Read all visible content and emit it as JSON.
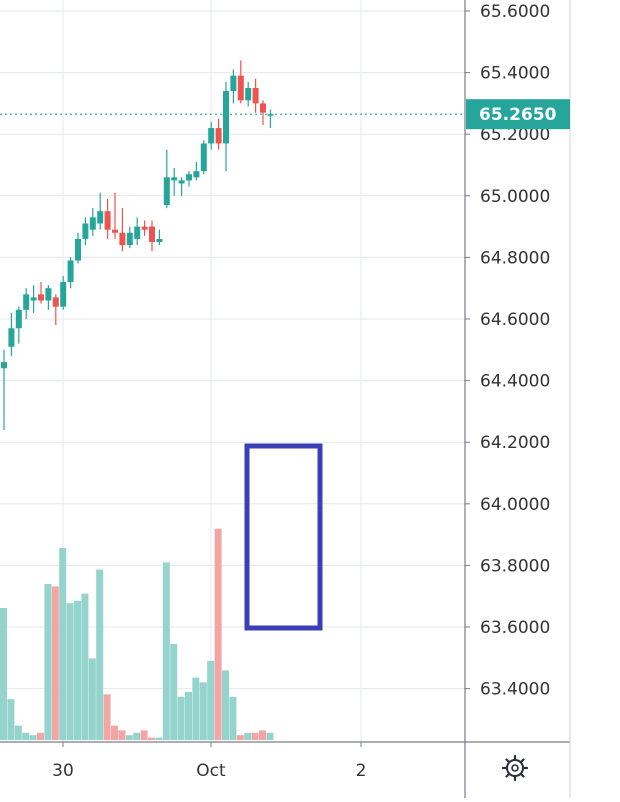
{
  "chart_data": {
    "type": "candlestick",
    "price_axis": {
      "ticks": [
        "65.6000",
        "65.4000",
        "65.2000",
        "65.0000",
        "64.8000",
        "64.6000",
        "64.4000",
        "64.2000",
        "64.0000",
        "63.8000",
        "63.6000",
        "63.4000"
      ],
      "range": [
        63.2,
        65.65
      ],
      "current_price_label": "65.2650",
      "current_price": 65.265
    },
    "time_axis": {
      "ticks": [
        "30",
        "Oct",
        "2"
      ]
    },
    "candles": [
      {
        "o": 64.44,
        "h": 64.5,
        "l": 64.24,
        "c": 64.46
      },
      {
        "o": 64.51,
        "h": 64.62,
        "l": 64.48,
        "c": 64.57
      },
      {
        "o": 64.57,
        "h": 64.64,
        "l": 64.52,
        "c": 64.63
      },
      {
        "o": 64.63,
        "h": 64.7,
        "l": 64.6,
        "c": 64.68
      },
      {
        "o": 64.66,
        "h": 64.71,
        "l": 64.62,
        "c": 64.67
      },
      {
        "o": 64.68,
        "h": 64.72,
        "l": 64.65,
        "c": 64.66
      },
      {
        "o": 64.66,
        "h": 64.71,
        "l": 64.63,
        "c": 64.7
      },
      {
        "o": 64.67,
        "h": 64.68,
        "l": 64.58,
        "c": 64.64
      },
      {
        "o": 64.64,
        "h": 64.74,
        "l": 64.63,
        "c": 64.72
      },
      {
        "o": 64.72,
        "h": 64.8,
        "l": 64.7,
        "c": 64.79
      },
      {
        "o": 64.79,
        "h": 64.88,
        "l": 64.78,
        "c": 64.86
      },
      {
        "o": 64.86,
        "h": 64.93,
        "l": 64.84,
        "c": 64.91
      },
      {
        "o": 64.89,
        "h": 64.96,
        "l": 64.87,
        "c": 64.93
      },
      {
        "o": 64.91,
        "h": 65.01,
        "l": 64.89,
        "c": 64.95
      },
      {
        "o": 64.95,
        "h": 64.99,
        "l": 64.86,
        "c": 64.89
      },
      {
        "o": 64.89,
        "h": 65.01,
        "l": 64.86,
        "c": 64.88
      },
      {
        "o": 64.88,
        "h": 64.96,
        "l": 64.82,
        "c": 64.84
      },
      {
        "o": 64.84,
        "h": 64.9,
        "l": 64.83,
        "c": 64.88
      },
      {
        "o": 64.86,
        "h": 64.93,
        "l": 64.84,
        "c": 64.9
      },
      {
        "o": 64.9,
        "h": 64.92,
        "l": 64.87,
        "c": 64.89
      },
      {
        "o": 64.9,
        "h": 64.92,
        "l": 64.82,
        "c": 64.85
      },
      {
        "o": 64.85,
        "h": 64.89,
        "l": 64.84,
        "c": 64.86
      },
      {
        "o": 64.97,
        "h": 65.15,
        "l": 64.96,
        "c": 65.06
      },
      {
        "o": 65.05,
        "h": 65.09,
        "l": 65.0,
        "c": 65.06
      },
      {
        "o": 65.04,
        "h": 65.06,
        "l": 65.0,
        "c": 65.05
      },
      {
        "o": 65.05,
        "h": 65.08,
        "l": 65.03,
        "c": 65.07
      },
      {
        "o": 65.06,
        "h": 65.11,
        "l": 65.05,
        "c": 65.08
      },
      {
        "o": 65.08,
        "h": 65.18,
        "l": 65.07,
        "c": 65.17
      },
      {
        "o": 65.17,
        "h": 65.24,
        "l": 65.15,
        "c": 65.22
      },
      {
        "o": 65.22,
        "h": 65.25,
        "l": 65.15,
        "c": 65.17
      },
      {
        "o": 65.17,
        "h": 65.37,
        "l": 65.08,
        "c": 65.34
      },
      {
        "o": 65.34,
        "h": 65.41,
        "l": 65.3,
        "c": 65.39
      },
      {
        "o": 65.39,
        "h": 65.44,
        "l": 65.3,
        "c": 65.31
      },
      {
        "o": 65.31,
        "h": 65.37,
        "l": 65.29,
        "c": 65.35
      },
      {
        "o": 65.35,
        "h": 65.38,
        "l": 65.27,
        "c": 65.3
      },
      {
        "o": 65.3,
        "h": 65.31,
        "l": 65.23,
        "c": 65.27
      },
      {
        "o": 65.26,
        "h": 65.28,
        "l": 65.22,
        "c": 65.265
      }
    ],
    "volumes": [
      55,
      17,
      6,
      3,
      2,
      3,
      65,
      64,
      80,
      57,
      58,
      61,
      34,
      71,
      19,
      6,
      4,
      2,
      3,
      4,
      1,
      1,
      74,
      40,
      18,
      20,
      26,
      24,
      33,
      88,
      29,
      18,
      2,
      3,
      3,
      4,
      3
    ],
    "volume_max": 100,
    "annotations": [
      {
        "type": "box",
        "color": "#3a3fb5"
      }
    ],
    "colors": {
      "up": "#26a69a",
      "down": "#ef5350",
      "up_volume": "#95d3cd",
      "down_volume": "#f3a5a3",
      "grid": "#e4eaee",
      "axis": "#7a7d85",
      "label_bg": "#26a69a",
      "price_line": "#26a69a"
    },
    "grid": true
  },
  "toolbar": {
    "settings_icon": "gear-icon"
  }
}
